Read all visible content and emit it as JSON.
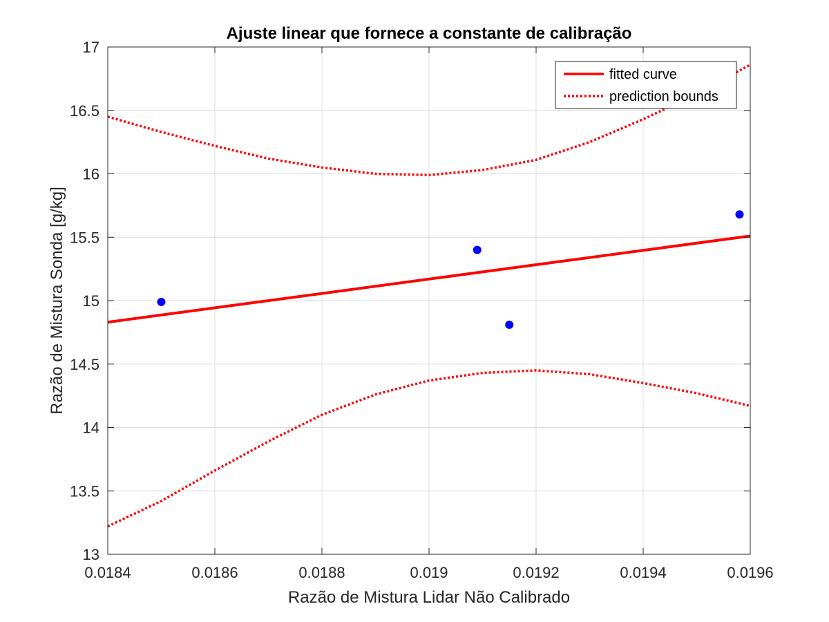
{
  "chart_data": {
    "type": "scatter",
    "title": "Ajuste linear que fornece a constante de calibração",
    "xlabel": "Razão de Mistura Lidar Não Calibrado",
    "ylabel": "Razão de Mistura Sonda [g/kg]",
    "xlim": [
      0.0184,
      0.0196
    ],
    "ylim": [
      13,
      17
    ],
    "xticks": [
      0.0184,
      0.0186,
      0.0188,
      0.019,
      0.0192,
      0.0194,
      0.0196
    ],
    "xtick_labels": [
      "0.0184",
      "0.0186",
      "0.0188",
      "0.019",
      "0.0192",
      "0.0194",
      "0.0196"
    ],
    "yticks": [
      13,
      13.5,
      14,
      14.5,
      15,
      15.5,
      16,
      16.5,
      17
    ],
    "ytick_labels": [
      "13",
      "13.5",
      "14",
      "14.5",
      "15",
      "15.5",
      "16",
      "16.5",
      "17"
    ],
    "grid": true,
    "legend_position": "top-right",
    "points": {
      "name": "data",
      "color": "#0000ff",
      "x": [
        0.0185,
        0.01909,
        0.01915,
        0.01958
      ],
      "y": [
        14.99,
        15.4,
        14.81,
        15.68
      ]
    },
    "fitted_curve": {
      "name": "fitted curve",
      "color": "#ff0000",
      "style": "solid",
      "x": [
        0.0184,
        0.0196
      ],
      "y": [
        14.83,
        15.51
      ]
    },
    "prediction_bounds": {
      "name": "prediction bounds",
      "color": "#ff0000",
      "style": "dotted",
      "x": [
        0.0184,
        0.0185,
        0.0186,
        0.0187,
        0.0188,
        0.0189,
        0.019,
        0.0191,
        0.0192,
        0.0193,
        0.0194,
        0.0195,
        0.0196
      ],
      "upper": [
        16.45,
        16.33,
        16.22,
        16.12,
        16.05,
        16.0,
        15.99,
        16.03,
        16.11,
        16.25,
        16.43,
        16.63,
        16.86
      ],
      "lower": [
        13.22,
        13.42,
        13.66,
        13.89,
        14.1,
        14.26,
        14.37,
        14.43,
        14.45,
        14.42,
        14.35,
        14.27,
        14.17
      ]
    },
    "legend": [
      "fitted curve",
      "prediction bounds"
    ]
  }
}
